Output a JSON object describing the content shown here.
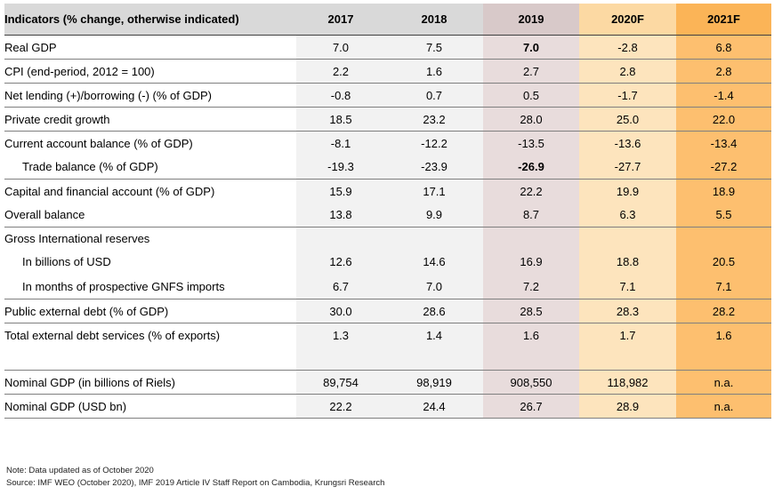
{
  "table": {
    "headers": [
      "Indicators (% change, otherwise indicated)",
      "2017",
      "2018",
      "2019",
      "2020F",
      "2021F"
    ],
    "rows": [
      {
        "label": "Real GDP",
        "values": [
          "7.0",
          "7.5",
          "7.0",
          "-2.8",
          "6.8"
        ],
        "bold_col": 2
      },
      {
        "label": "CPI (end-period, 2012 = 100)",
        "values": [
          "2.2",
          "1.6",
          "2.7",
          "2.8",
          "2.8"
        ]
      },
      {
        "label": "Net lending (+)/borrowing (-) (% of GDP)",
        "values": [
          "-0.8",
          "0.7",
          "0.5",
          "-1.7",
          "-1.4"
        ]
      },
      {
        "label": "Private credit growth",
        "values": [
          "18.5",
          "23.2",
          "28.0",
          "25.0",
          "22.0"
        ]
      },
      {
        "label": "Current account balance (% of GDP)",
        "values": [
          "-8.1",
          "-12.2",
          "-13.5",
          "-13.6",
          "-13.4"
        ]
      },
      {
        "label": "Trade balance (% of GDP)",
        "values": [
          "-19.3",
          "-23.9",
          "-26.9",
          "-27.7",
          "-27.2"
        ],
        "bold_col": 2,
        "indent": true
      },
      {
        "label": "Capital and financial account (% of GDP)",
        "values": [
          "15.9",
          "17.1",
          "22.2",
          "19.9",
          "18.9"
        ]
      },
      {
        "label": "Overall balance",
        "values": [
          "13.8",
          "9.9",
          "8.7",
          "6.3",
          "5.5"
        ]
      },
      {
        "label": "Gross International reserves",
        "values": [
          "",
          "",
          "",
          "",
          ""
        ]
      },
      {
        "label": "In billions of USD",
        "values": [
          "12.6",
          "14.6",
          "16.9",
          "18.8",
          "20.5"
        ],
        "indent": true
      },
      {
        "label": "In months of prospective GNFS imports",
        "values": [
          "6.7",
          "7.0",
          "7.2",
          "7.1",
          "7.1"
        ],
        "indent": true
      },
      {
        "label": "Public external debt (% of GDP)",
        "values": [
          "30.0",
          "28.6",
          "28.5",
          "28.3",
          "28.2"
        ]
      },
      {
        "label": "Total external debt services (% of exports)",
        "values": [
          "1.3",
          "1.4",
          "1.6",
          "1.7",
          "1.6"
        ]
      },
      {
        "label": "",
        "values": [
          "",
          "",
          "",
          "",
          ""
        ]
      },
      {
        "label": "Nominal GDP (in billions of Riels)",
        "values": [
          "89,754",
          "98,919",
          "908,550",
          "118,982",
          "n.a."
        ]
      },
      {
        "label": "Nominal GDP (USD bn)",
        "values": [
          "22.2",
          "24.4",
          "26.7",
          "28.9",
          "n.a."
        ]
      }
    ]
  },
  "notes": {
    "note": "Note: Data updated as of October 2020",
    "source": "Source: IMF WEO (October 2020),  IMF 2019 Article IV Staff Report on Cambodia, Krungsri Research"
  },
  "colors": {
    "header_grey": "#d9d9d9",
    "col_2019": "#e8dcdc",
    "col_2020F": "#fde4bd",
    "col_2021F": "#fdbf6f"
  }
}
